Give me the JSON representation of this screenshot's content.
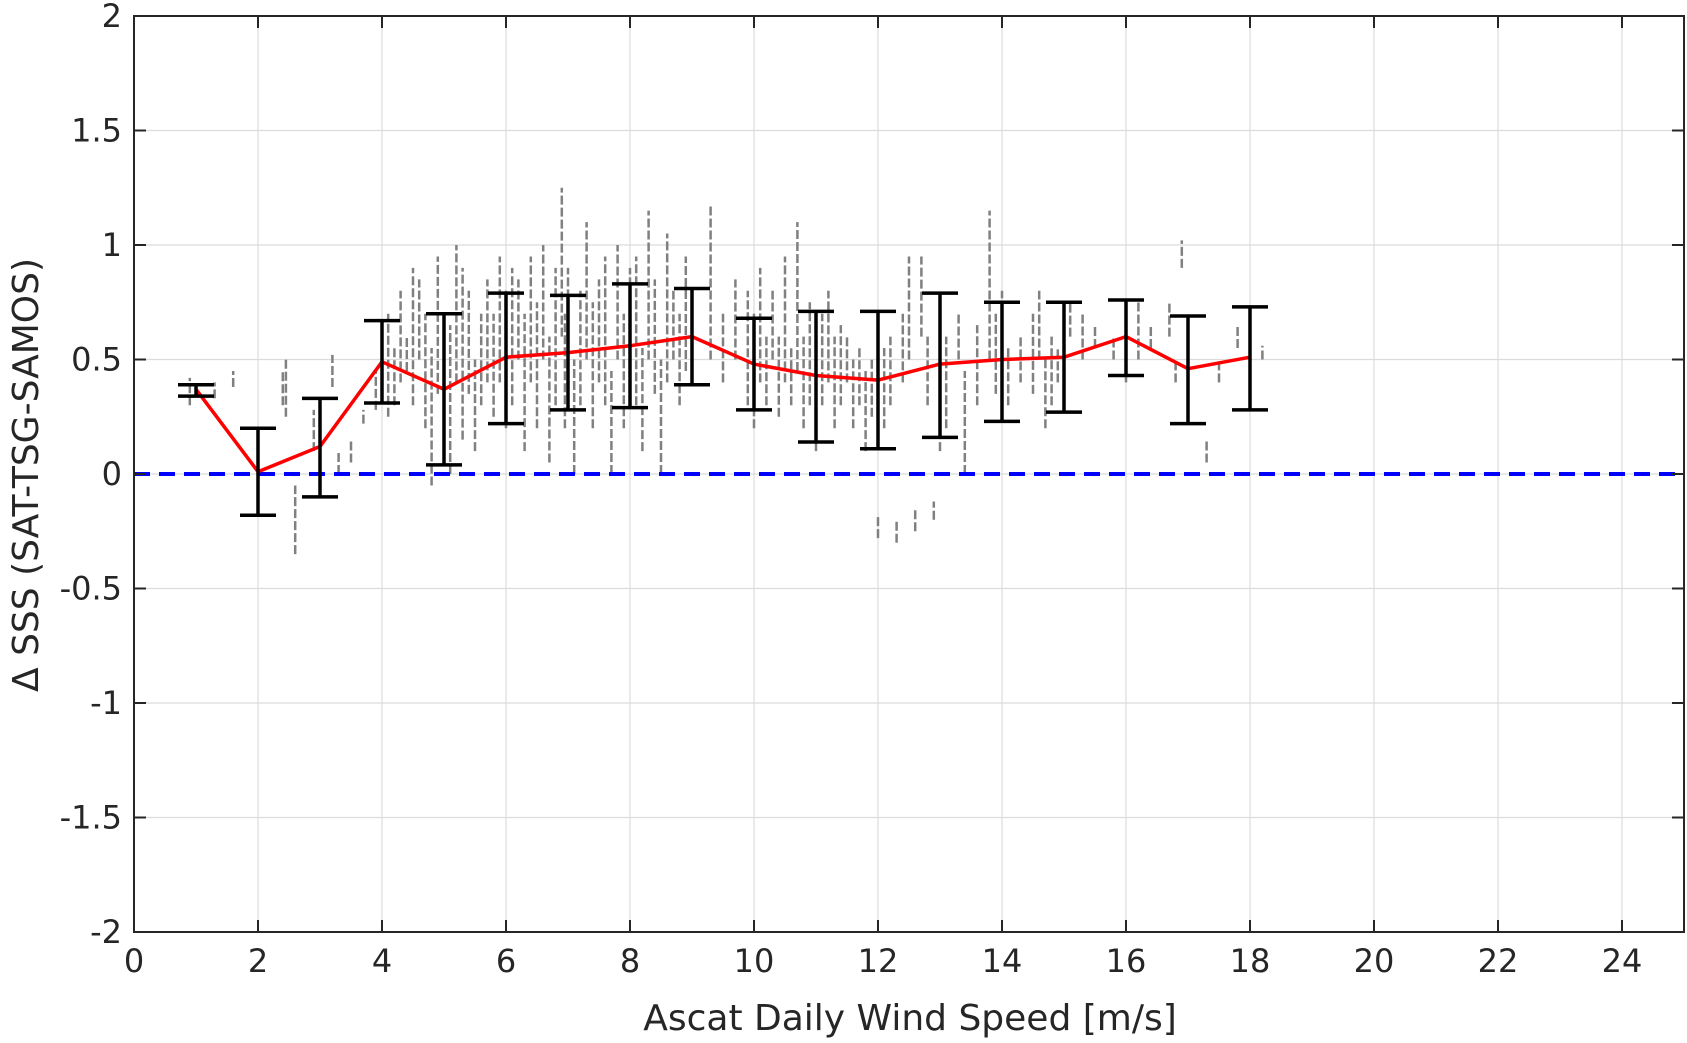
{
  "chart_data": {
    "type": "scatter",
    "title": "",
    "xlabel": "Ascat Daily Wind Speed [m/s]",
    "ylabel": "Δ SSS (SAT-TSG-SAMOS)",
    "xlim": [
      0,
      25
    ],
    "ylim": [
      -2,
      2
    ],
    "x_ticks": [
      0,
      2,
      4,
      6,
      8,
      10,
      12,
      14,
      16,
      18,
      20,
      22,
      24
    ],
    "y_ticks": [
      -2,
      -1.5,
      -1,
      -0.5,
      0,
      0.5,
      1,
      1.5,
      2
    ],
    "y_tick_labels": [
      "-2",
      "-1.5",
      "-1",
      "-0.5",
      "0",
      "0.5",
      "1",
      "1.5",
      "2"
    ],
    "grid": true,
    "reference_line": {
      "y": 0,
      "style": "dashed",
      "color": "#0000ff"
    },
    "colors": {
      "scatter": "#808080",
      "mean_line": "#ff0000",
      "error_bars": "#000000",
      "grid": "#dcdcdc",
      "axes": "#262626"
    },
    "mean_series": {
      "x": [
        1,
        2,
        3,
        4,
        5,
        6,
        7,
        8,
        9,
        10,
        11,
        12,
        13,
        14,
        15,
        16,
        17,
        18
      ],
      "y": [
        0.37,
        0.01,
        0.12,
        0.49,
        0.37,
        0.51,
        0.53,
        0.56,
        0.6,
        0.48,
        0.43,
        0.41,
        0.48,
        0.5,
        0.51,
        0.6,
        0.46,
        0.51
      ]
    },
    "error_bars": [
      {
        "x": 1,
        "low": 0.34,
        "high": 0.39
      },
      {
        "x": 2,
        "low": -0.18,
        "high": 0.2
      },
      {
        "x": 3,
        "low": -0.1,
        "high": 0.33
      },
      {
        "x": 4,
        "low": 0.31,
        "high": 0.67
      },
      {
        "x": 5,
        "low": 0.04,
        "high": 0.7
      },
      {
        "x": 6,
        "low": 0.22,
        "high": 0.79
      },
      {
        "x": 7,
        "low": 0.28,
        "high": 0.78
      },
      {
        "x": 8,
        "low": 0.29,
        "high": 0.83
      },
      {
        "x": 9,
        "low": 0.39,
        "high": 0.81
      },
      {
        "x": 10,
        "low": 0.28,
        "high": 0.68
      },
      {
        "x": 11,
        "low": 0.14,
        "high": 0.71
      },
      {
        "x": 12,
        "low": 0.11,
        "high": 0.71
      },
      {
        "x": 13,
        "low": 0.16,
        "high": 0.79
      },
      {
        "x": 14,
        "low": 0.23,
        "high": 0.75
      },
      {
        "x": 15,
        "low": 0.27,
        "high": 0.75
      },
      {
        "x": 16,
        "low": 0.43,
        "high": 0.76
      },
      {
        "x": 17,
        "low": 0.22,
        "high": 0.69
      },
      {
        "x": 18,
        "low": 0.28,
        "high": 0.73
      }
    ],
    "scatter_segments": [
      [
        0.9,
        0.3,
        0.42
      ],
      [
        1.3,
        0.33,
        0.4
      ],
      [
        1.6,
        0.38,
        0.45
      ],
      [
        2.4,
        0.3,
        0.45
      ],
      [
        2.45,
        0.25,
        0.5
      ],
      [
        2.6,
        -0.35,
        -0.05
      ],
      [
        2.9,
        0.1,
        0.28
      ],
      [
        3.2,
        0.38,
        0.52
      ],
      [
        3.3,
        0.0,
        0.1
      ],
      [
        3.5,
        0.05,
        0.15
      ],
      [
        3.7,
        0.22,
        0.28
      ],
      [
        3.9,
        0.28,
        0.45
      ],
      [
        4.1,
        0.25,
        0.7
      ],
      [
        4.2,
        0.3,
        0.55
      ],
      [
        4.3,
        0.4,
        0.8
      ],
      [
        4.4,
        0.45,
        0.6
      ],
      [
        4.5,
        0.3,
        0.9
      ],
      [
        4.6,
        0.5,
        0.85
      ],
      [
        4.7,
        0.2,
        0.7
      ],
      [
        4.8,
        -0.05,
        0.55
      ],
      [
        4.9,
        0.35,
        0.95
      ],
      [
        5.0,
        0.1,
        0.6
      ],
      [
        5.1,
        0.0,
        0.65
      ],
      [
        5.2,
        0.4,
        1.0
      ],
      [
        5.3,
        0.15,
        0.9
      ],
      [
        5.4,
        0.35,
        0.8
      ],
      [
        5.5,
        0.1,
        0.5
      ],
      [
        5.6,
        0.3,
        0.7
      ],
      [
        5.7,
        0.4,
        0.85
      ],
      [
        5.8,
        0.25,
        0.7
      ],
      [
        5.9,
        0.4,
        0.95
      ],
      [
        6.0,
        0.2,
        0.8
      ],
      [
        6.1,
        0.3,
        0.9
      ],
      [
        6.2,
        0.5,
        0.85
      ],
      [
        6.3,
        0.1,
        0.7
      ],
      [
        6.4,
        0.4,
        0.95
      ],
      [
        6.5,
        0.2,
        0.75
      ],
      [
        6.6,
        0.5,
        1.0
      ],
      [
        6.7,
        0.05,
        0.6
      ],
      [
        6.8,
        0.3,
        0.9
      ],
      [
        6.9,
        0.6,
        1.25
      ],
      [
        6.95,
        0.2,
        0.7
      ],
      [
        7.0,
        0.4,
        0.9
      ],
      [
        7.1,
        0.0,
        0.5
      ],
      [
        7.2,
        0.3,
        0.8
      ],
      [
        7.3,
        0.5,
        1.1
      ],
      [
        7.4,
        0.2,
        0.75
      ],
      [
        7.5,
        0.4,
        0.85
      ],
      [
        7.6,
        0.3,
        0.95
      ],
      [
        7.7,
        0.0,
        0.45
      ],
      [
        7.8,
        0.5,
        1.0
      ],
      [
        7.9,
        0.2,
        0.7
      ],
      [
        8.0,
        0.4,
        0.9
      ],
      [
        8.1,
        0.3,
        0.95
      ],
      [
        8.2,
        0.1,
        0.55
      ],
      [
        8.3,
        0.5,
        1.15
      ],
      [
        8.4,
        0.35,
        0.85
      ],
      [
        8.5,
        0.0,
        0.5
      ],
      [
        8.6,
        0.4,
        1.05
      ],
      [
        8.7,
        0.5,
        0.8
      ],
      [
        8.8,
        0.3,
        0.7
      ],
      [
        8.9,
        0.45,
        0.95
      ],
      [
        9.0,
        0.4,
        0.75
      ],
      [
        9.3,
        0.5,
        1.18
      ],
      [
        9.5,
        0.4,
        0.7
      ],
      [
        9.7,
        0.5,
        0.85
      ],
      [
        9.9,
        0.3,
        0.8
      ],
      [
        10.0,
        0.2,
        0.7
      ],
      [
        10.1,
        0.4,
        0.9
      ],
      [
        10.2,
        0.3,
        0.6
      ],
      [
        10.3,
        0.5,
        0.8
      ],
      [
        10.4,
        0.25,
        0.6
      ],
      [
        10.5,
        0.4,
        0.95
      ],
      [
        10.6,
        0.3,
        0.55
      ],
      [
        10.7,
        0.45,
        1.1
      ],
      [
        10.8,
        0.2,
        0.6
      ],
      [
        10.9,
        0.3,
        0.75
      ],
      [
        11.0,
        0.1,
        0.55
      ],
      [
        11.1,
        0.3,
        0.7
      ],
      [
        11.2,
        0.4,
        0.8
      ],
      [
        11.3,
        0.2,
        0.6
      ],
      [
        11.4,
        0.3,
        0.65
      ],
      [
        11.5,
        0.4,
        0.6
      ],
      [
        11.6,
        0.2,
        0.5
      ],
      [
        11.7,
        0.3,
        0.55
      ],
      [
        11.8,
        0.1,
        0.45
      ],
      [
        11.9,
        0.25,
        0.5
      ],
      [
        12.0,
        -0.28,
        -0.18
      ],
      [
        12.1,
        0.2,
        0.55
      ],
      [
        12.2,
        0.3,
        0.6
      ],
      [
        12.3,
        -0.3,
        -0.2
      ],
      [
        12.4,
        0.4,
        0.7
      ],
      [
        12.5,
        0.5,
        0.95
      ],
      [
        12.6,
        -0.25,
        -0.15
      ],
      [
        12.7,
        0.6,
        0.95
      ],
      [
        12.8,
        0.3,
        0.6
      ],
      [
        12.9,
        -0.2,
        -0.12
      ],
      [
        13.0,
        0.1,
        0.5
      ],
      [
        13.1,
        0.2,
        0.6
      ],
      [
        13.3,
        0.5,
        0.7
      ],
      [
        13.4,
        0.0,
        0.45
      ],
      [
        13.6,
        0.3,
        0.65
      ],
      [
        13.8,
        0.5,
        1.15
      ],
      [
        13.9,
        0.35,
        0.7
      ],
      [
        14.0,
        0.4,
        0.8
      ],
      [
        14.1,
        0.3,
        0.55
      ],
      [
        14.3,
        0.4,
        0.6
      ],
      [
        14.5,
        0.35,
        0.7
      ],
      [
        14.6,
        0.5,
        0.8
      ],
      [
        14.7,
        0.2,
        0.5
      ],
      [
        14.8,
        0.3,
        0.6
      ],
      [
        14.9,
        0.4,
        0.55
      ],
      [
        15.1,
        0.6,
        0.75
      ],
      [
        15.3,
        0.5,
        0.7
      ],
      [
        15.5,
        0.55,
        0.65
      ],
      [
        15.8,
        0.5,
        0.6
      ],
      [
        16.0,
        0.4,
        0.65
      ],
      [
        16.2,
        0.5,
        0.75
      ],
      [
        16.4,
        0.55,
        0.65
      ],
      [
        16.7,
        0.6,
        0.75
      ],
      [
        16.8,
        0.4,
        0.5
      ],
      [
        16.9,
        0.9,
        1.02
      ],
      [
        17.3,
        0.05,
        0.15
      ],
      [
        17.5,
        0.4,
        0.5
      ],
      [
        17.8,
        0.55,
        0.65
      ],
      [
        18.2,
        0.5,
        0.56
      ]
    ]
  }
}
